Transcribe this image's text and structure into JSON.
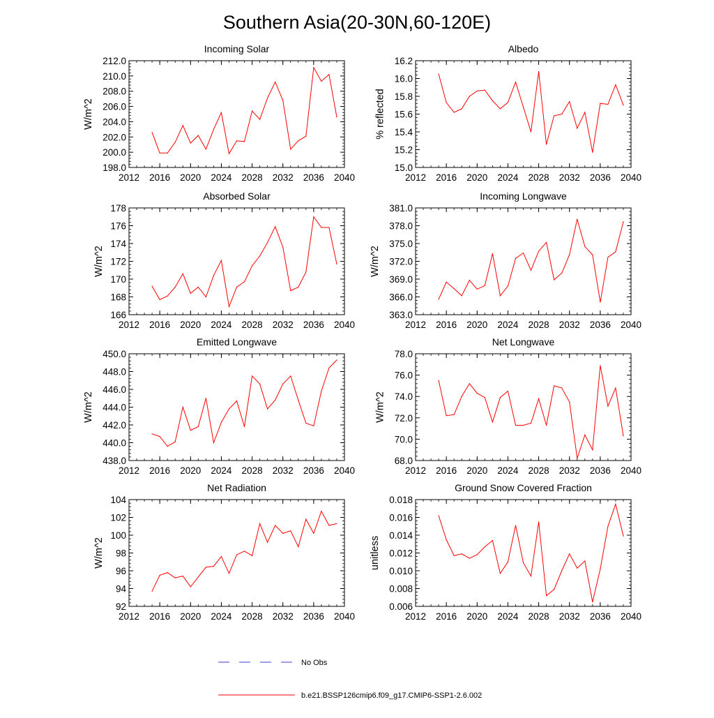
{
  "title": "Southern Asia(20-30N,60-120E)",
  "legend": {
    "obs_label": "No Obs",
    "model_label": "b.e21.BSSP126cmip6.f09_g17.CMIP6-SSP1-2.6.002",
    "obs_color": "#3b3bd4",
    "model_color": "#ff0000"
  },
  "chart_data": [
    {
      "type": "line",
      "title": "Incoming Solar",
      "ylabel": "W/m^2",
      "xlim": [
        2012,
        2040
      ],
      "ylim": [
        198,
        212
      ],
      "xticks": [
        2012,
        2016,
        2020,
        2024,
        2028,
        2032,
        2036,
        2040
      ],
      "xtick_labels": [
        "2012",
        "2016",
        "2020",
        "2024",
        "2028",
        "2032",
        "2036",
        "2040"
      ],
      "yticks": [
        198,
        200,
        202,
        204,
        206,
        208,
        210,
        212
      ],
      "ytick_labels": [
        "198.0",
        "200.0",
        "202.0",
        "204.0",
        "206.0",
        "208.0",
        "210.0",
        "212.0"
      ],
      "x": [
        2015,
        2016,
        2017,
        2018,
        2019,
        2020,
        2021,
        2022,
        2023,
        2024,
        2025,
        2026,
        2027,
        2028,
        2029,
        2030,
        2031,
        2032,
        2033,
        2034,
        2035,
        2036,
        2037,
        2038,
        2039
      ],
      "values": [
        202.6,
        199.9,
        199.9,
        201.3,
        203.5,
        201.2,
        202.2,
        200.4,
        203.0,
        205.2,
        199.8,
        201.5,
        201.4,
        205.4,
        204.3,
        207.1,
        209.2,
        206.8,
        200.4,
        201.5,
        202.1,
        211.1,
        209.3,
        210.2,
        204.6
      ]
    },
    {
      "type": "line",
      "title": "Albedo",
      "ylabel": "% reflected",
      "xlim": [
        2012,
        2040
      ],
      "ylim": [
        15.0,
        16.2
      ],
      "xticks": [
        2012,
        2016,
        2020,
        2024,
        2028,
        2032,
        2036,
        2040
      ],
      "xtick_labels": [
        "2012",
        "2016",
        "2020",
        "2024",
        "2028",
        "2032",
        "2036",
        "2040"
      ],
      "yticks": [
        15.0,
        15.2,
        15.4,
        15.6,
        15.8,
        16.0,
        16.2
      ],
      "ytick_labels": [
        "15.0",
        "15.2",
        "15.4",
        "15.6",
        "15.8",
        "16.0",
        "16.2"
      ],
      "x": [
        2015,
        2016,
        2017,
        2018,
        2019,
        2020,
        2021,
        2022,
        2023,
        2024,
        2025,
        2026,
        2027,
        2028,
        2029,
        2030,
        2031,
        2032,
        2033,
        2034,
        2035,
        2036,
        2037,
        2038,
        2039
      ],
      "values": [
        16.05,
        15.73,
        15.62,
        15.66,
        15.8,
        15.86,
        15.87,
        15.75,
        15.66,
        15.73,
        15.96,
        15.68,
        15.4,
        16.08,
        15.26,
        15.58,
        15.6,
        15.74,
        15.44,
        15.62,
        15.17,
        15.72,
        15.71,
        15.93,
        15.7
      ]
    },
    {
      "type": "line",
      "title": "Absorbed Solar",
      "ylabel": "W/m^2",
      "xlim": [
        2012,
        2040
      ],
      "ylim": [
        166,
        178
      ],
      "xticks": [
        2012,
        2016,
        2020,
        2024,
        2028,
        2032,
        2036,
        2040
      ],
      "xtick_labels": [
        "2012",
        "2016",
        "2020",
        "2024",
        "2028",
        "2032",
        "2036",
        "2040"
      ],
      "yticks": [
        166,
        168,
        170,
        172,
        174,
        176,
        178
      ],
      "ytick_labels": [
        "166",
        "168",
        "170",
        "172",
        "174",
        "176",
        "178"
      ],
      "x": [
        2015,
        2016,
        2017,
        2018,
        2019,
        2020,
        2021,
        2022,
        2023,
        2024,
        2025,
        2026,
        2027,
        2028,
        2029,
        2030,
        2031,
        2032,
        2033,
        2034,
        2035,
        2036,
        2037,
        2038,
        2039
      ],
      "values": [
        169.2,
        167.7,
        168.1,
        169.1,
        170.6,
        168.4,
        169.1,
        168.0,
        170.4,
        172.1,
        166.9,
        169.1,
        169.7,
        171.5,
        172.6,
        174.1,
        175.9,
        173.6,
        168.7,
        169.1,
        170.8,
        177.0,
        175.8,
        175.8,
        171.7
      ]
    },
    {
      "type": "line",
      "title": "Incoming Longwave",
      "ylabel": "W/m^2",
      "xlim": [
        2012,
        2040
      ],
      "ylim": [
        363,
        381
      ],
      "xticks": [
        2012,
        2016,
        2020,
        2024,
        2028,
        2032,
        2036,
        2040
      ],
      "xtick_labels": [
        "2012",
        "2016",
        "2020",
        "2024",
        "2028",
        "2032",
        "2036",
        "2040"
      ],
      "yticks": [
        363,
        366,
        369,
        372,
        375,
        378,
        381
      ],
      "ytick_labels": [
        "363.0",
        "366.0",
        "369.0",
        "372.0",
        "375.0",
        "378.0",
        "381.0"
      ],
      "x": [
        2015,
        2016,
        2017,
        2018,
        2019,
        2020,
        2021,
        2022,
        2023,
        2024,
        2025,
        2026,
        2027,
        2028,
        2029,
        2030,
        2031,
        2032,
        2033,
        2034,
        2035,
        2036,
        2037,
        2038,
        2039
      ],
      "values": [
        365.6,
        368.5,
        367.4,
        366.2,
        368.8,
        367.3,
        367.9,
        373.3,
        366.2,
        367.8,
        372.5,
        373.4,
        370.5,
        373.7,
        375.2,
        368.9,
        370.0,
        373.1,
        379.1,
        374.5,
        373.1,
        365.1,
        372.7,
        373.6,
        378.7
      ]
    },
    {
      "type": "line",
      "title": "Emitted Longwave",
      "ylabel": "W/m^2",
      "xlim": [
        2012,
        2040
      ],
      "ylim": [
        438,
        450
      ],
      "xticks": [
        2012,
        2016,
        2020,
        2024,
        2028,
        2032,
        2036,
        2040
      ],
      "xtick_labels": [
        "2012",
        "2016",
        "2020",
        "2024",
        "2028",
        "2032",
        "2036",
        "2040"
      ],
      "yticks": [
        438,
        440,
        442,
        444,
        446,
        448,
        450
      ],
      "ytick_labels": [
        "438.0",
        "440.0",
        "442.0",
        "444.0",
        "446.0",
        "448.0",
        "450.0"
      ],
      "x": [
        2015,
        2016,
        2017,
        2018,
        2019,
        2020,
        2021,
        2022,
        2023,
        2024,
        2025,
        2026,
        2027,
        2028,
        2029,
        2030,
        2031,
        2032,
        2033,
        2034,
        2035,
        2036,
        2037,
        2038,
        2039
      ],
      "values": [
        441.0,
        440.7,
        439.6,
        440.1,
        444.0,
        441.4,
        441.8,
        445.0,
        440.0,
        442.3,
        443.8,
        444.7,
        441.8,
        447.5,
        446.6,
        443.8,
        444.8,
        446.6,
        447.5,
        444.8,
        442.2,
        441.9,
        445.8,
        448.4,
        449.3
      ]
    },
    {
      "type": "line",
      "title": "Net Longwave",
      "ylabel": "W/m^2",
      "xlim": [
        2012,
        2040
      ],
      "ylim": [
        68,
        78
      ],
      "xticks": [
        2012,
        2016,
        2020,
        2024,
        2028,
        2032,
        2036,
        2040
      ],
      "xtick_labels": [
        "2012",
        "2016",
        "2020",
        "2024",
        "2028",
        "2032",
        "2036",
        "2040"
      ],
      "yticks": [
        68,
        70,
        72,
        74,
        76,
        78
      ],
      "ytick_labels": [
        "68.0",
        "70.0",
        "72.0",
        "74.0",
        "76.0",
        "78.0"
      ],
      "x": [
        2015,
        2016,
        2017,
        2018,
        2019,
        2020,
        2021,
        2022,
        2023,
        2024,
        2025,
        2026,
        2027,
        2028,
        2029,
        2030,
        2031,
        2032,
        2033,
        2034,
        2035,
        2036,
        2037,
        2038,
        2039
      ],
      "values": [
        75.5,
        72.2,
        72.3,
        74.0,
        75.2,
        74.3,
        73.9,
        71.6,
        73.9,
        74.5,
        71.3,
        71.3,
        71.5,
        73.8,
        71.3,
        75.0,
        74.8,
        73.5,
        68.2,
        70.4,
        69.0,
        76.9,
        73.1,
        74.8,
        70.3
      ]
    },
    {
      "type": "line",
      "title": "Net Radiation",
      "ylabel": "W/m^2",
      "xlim": [
        2012,
        2040
      ],
      "ylim": [
        92,
        104
      ],
      "xticks": [
        2012,
        2016,
        2020,
        2024,
        2028,
        2032,
        2036,
        2040
      ],
      "xtick_labels": [
        "2012",
        "2016",
        "2020",
        "2024",
        "2028",
        "2032",
        "2036",
        "2040"
      ],
      "yticks": [
        92,
        94,
        96,
        98,
        100,
        102,
        104
      ],
      "ytick_labels": [
        "92",
        "94",
        "96",
        "98",
        "100",
        "102",
        "104"
      ],
      "x": [
        2015,
        2016,
        2017,
        2018,
        2019,
        2020,
        2021,
        2022,
        2023,
        2024,
        2025,
        2026,
        2027,
        2028,
        2029,
        2030,
        2031,
        2032,
        2033,
        2034,
        2035,
        2036,
        2037,
        2038,
        2039
      ],
      "values": [
        93.7,
        95.5,
        95.8,
        95.2,
        95.4,
        94.2,
        95.3,
        96.4,
        96.5,
        97.6,
        95.7,
        97.8,
        98.2,
        97.7,
        101.3,
        99.2,
        101.1,
        100.2,
        100.5,
        98.7,
        101.8,
        100.2,
        102.7,
        101.1,
        101.3
      ]
    },
    {
      "type": "line",
      "title": "Ground Snow Covered Fraction",
      "ylabel": "unitless",
      "xlim": [
        2012,
        2040
      ],
      "ylim": [
        0.006,
        0.018
      ],
      "xticks": [
        2012,
        2016,
        2020,
        2024,
        2028,
        2032,
        2036,
        2040
      ],
      "xtick_labels": [
        "2012",
        "2016",
        "2020",
        "2024",
        "2028",
        "2032",
        "2036",
        "2040"
      ],
      "yticks": [
        0.006,
        0.008,
        0.01,
        0.012,
        0.014,
        0.016,
        0.018
      ],
      "ytick_labels": [
        "0.006",
        "0.008",
        "0.010",
        "0.012",
        "0.014",
        "0.016",
        "0.018"
      ],
      "x": [
        2015,
        2016,
        2017,
        2018,
        2019,
        2020,
        2021,
        2022,
        2023,
        2024,
        2025,
        2026,
        2027,
        2028,
        2029,
        2030,
        2031,
        2032,
        2033,
        2034,
        2035,
        2036,
        2037,
        2038,
        2039
      ],
      "values": [
        0.0162,
        0.0135,
        0.0117,
        0.0119,
        0.0114,
        0.0118,
        0.0127,
        0.0134,
        0.0097,
        0.011,
        0.0151,
        0.0109,
        0.0094,
        0.0155,
        0.0072,
        0.0079,
        0.01,
        0.0119,
        0.0103,
        0.0111,
        0.0065,
        0.0102,
        0.015,
        0.0175,
        0.0139
      ]
    }
  ]
}
